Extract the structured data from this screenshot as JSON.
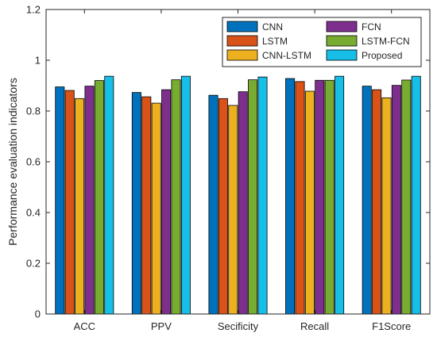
{
  "chart_data": {
    "type": "bar",
    "title": "",
    "xlabel": "",
    "ylabel": "Performance evaluation indicators",
    "ylim": [
      0,
      1.2
    ],
    "yticks": [
      "0",
      "0.2",
      "0.4",
      "0.6",
      "0.8",
      "1",
      "1.2"
    ],
    "categories": [
      "ACC",
      "PPV",
      "Secificity",
      "Recall",
      "F1Score"
    ],
    "series": [
      {
        "name": "CNN",
        "color": "#0072BD",
        "values": [
          0.895,
          0.873,
          0.862,
          0.928,
          0.898
        ]
      },
      {
        "name": "LSTM",
        "color": "#D95319",
        "values": [
          0.881,
          0.856,
          0.849,
          0.916,
          0.884
        ]
      },
      {
        "name": "CNN-LSTM",
        "color": "#EDB120",
        "values": [
          0.849,
          0.831,
          0.822,
          0.878,
          0.852
        ]
      },
      {
        "name": "FCN",
        "color": "#7E2F8E",
        "values": [
          0.898,
          0.884,
          0.876,
          0.921,
          0.901
        ]
      },
      {
        "name": "LSTM-FCN",
        "color": "#77AC30",
        "values": [
          0.92,
          0.923,
          0.923,
          0.921,
          0.922
        ]
      },
      {
        "name": "Proposed",
        "color": "#17BEE8",
        "values": [
          0.937,
          0.937,
          0.934,
          0.937,
          0.937
        ]
      }
    ],
    "legend": {
      "position": "top-right",
      "columns": 2
    },
    "grid": false
  }
}
